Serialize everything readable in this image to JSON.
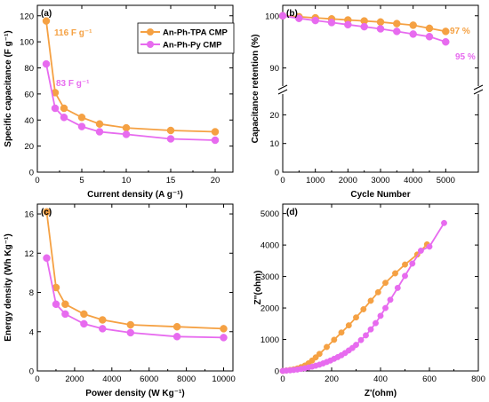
{
  "colors": {
    "orange": "#F5A143",
    "magenta": "#E76BEF"
  },
  "chart_data": [
    {
      "id": "a",
      "type": "line",
      "panel_label": "(a)",
      "xlabel": "Current density (A g⁻¹)",
      "ylabel": "Specific capacitance (F g⁻¹)",
      "xlim": [
        0,
        22
      ],
      "ylim": [
        0,
        128
      ],
      "xticks": [
        0,
        5,
        10,
        15,
        20
      ],
      "yticks": [
        0,
        20,
        40,
        60,
        80,
        100,
        120
      ],
      "legend": {
        "position": "top-right",
        "entries": [
          "An-Ph-TPA CMP",
          "An-Ph-Py CMP"
        ]
      },
      "series": [
        {
          "name": "An-Ph-TPA CMP",
          "color": "#F5A143",
          "x": [
            1,
            2,
            3,
            5,
            7,
            10,
            15,
            20
          ],
          "y": [
            116,
            61,
            49,
            42,
            37,
            34,
            32,
            31
          ]
        },
        {
          "name": "An-Ph-Py CMP",
          "color": "#E76BEF",
          "x": [
            1,
            2,
            3,
            5,
            7,
            10,
            15,
            20
          ],
          "y": [
            83,
            49,
            42,
            35,
            31,
            29,
            25.5,
            24.5
          ]
        }
      ],
      "annotations": [
        {
          "text": "116 F g⁻¹",
          "color": "#F5A143"
        },
        {
          "text": "83 F g⁻¹",
          "color": "#E76BEF"
        }
      ]
    },
    {
      "id": "b",
      "type": "line",
      "panel_label": "(b)",
      "xlabel": "Cycle Number",
      "ylabel": "Capacitance retention (%)",
      "xlim": [
        0,
        6000
      ],
      "ylim_upper": [
        85,
        102
      ],
      "ylim_lower": [
        0,
        26
      ],
      "xticks": [
        0,
        1000,
        2000,
        3000,
        4000,
        5000
      ],
      "yticks": [
        0,
        10,
        20,
        90,
        100
      ],
      "broken_axis": true,
      "series": [
        {
          "name": "An-Ph-TPA CMP",
          "color": "#F5A143",
          "x": [
            0,
            500,
            1000,
            1500,
            2000,
            2500,
            3000,
            3500,
            4000,
            4500,
            5000
          ],
          "y": [
            100,
            99.8,
            99.6,
            99.4,
            99.2,
            99,
            98.8,
            98.5,
            98.2,
            97.6,
            97
          ]
        },
        {
          "name": "An-Ph-Py CMP",
          "color": "#E76BEF",
          "x": [
            0,
            500,
            1000,
            1500,
            2000,
            2500,
            3000,
            3500,
            4000,
            4500,
            5000
          ],
          "y": [
            100,
            99.5,
            99.1,
            98.7,
            98.3,
            97.9,
            97.5,
            97,
            96.5,
            96,
            95
          ]
        }
      ],
      "annotations": [
        {
          "text": "97 %",
          "color": "#F5A143"
        },
        {
          "text": "95 %",
          "color": "#E76BEF"
        }
      ]
    },
    {
      "id": "c",
      "type": "line",
      "panel_label": "(c)",
      "xlabel": "Power density (W Kg⁻¹)",
      "ylabel": "Energy density (Wh Kg⁻¹)",
      "xlim": [
        0,
        10500
      ],
      "ylim": [
        0,
        17
      ],
      "xticks": [
        0,
        2000,
        4000,
        6000,
        8000,
        10000
      ],
      "yticks": [
        0,
        4,
        8,
        12,
        16
      ],
      "series": [
        {
          "name": "An-Ph-TPA CMP",
          "color": "#F5A143",
          "x": [
            500,
            1000,
            1500,
            2500,
            3500,
            5000,
            7500,
            10000
          ],
          "y": [
            16.2,
            8.5,
            6.8,
            5.8,
            5.2,
            4.7,
            4.5,
            4.3
          ]
        },
        {
          "name": "An-Ph-Py CMP",
          "color": "#E76BEF",
          "x": [
            500,
            1000,
            1500,
            2500,
            3500,
            5000,
            7500,
            10000
          ],
          "y": [
            11.5,
            6.8,
            5.8,
            4.8,
            4.3,
            3.9,
            3.5,
            3.4
          ]
        }
      ]
    },
    {
      "id": "d",
      "type": "scatter",
      "panel_label": "(d)",
      "xlabel": "Z'(ohm)",
      "ylabel": "Z''(ohm)",
      "xlim": [
        0,
        800
      ],
      "ylim": [
        0,
        5300
      ],
      "xticks": [
        0,
        200,
        400,
        600,
        800
      ],
      "yticks": [
        0,
        1000,
        2000,
        3000,
        4000,
        5000
      ],
      "series": [
        {
          "name": "An-Ph-TPA CMP",
          "color": "#F5A143",
          "x": [
            0,
            15,
            30,
            45,
            60,
            75,
            90,
            105,
            120,
            135,
            150,
            180,
            210,
            240,
            270,
            300,
            330,
            360,
            390,
            420,
            460,
            500,
            550,
            590
          ],
          "y": [
            0,
            15,
            30,
            50,
            80,
            120,
            170,
            240,
            330,
            430,
            540,
            760,
            990,
            1220,
            1450,
            1700,
            1960,
            2230,
            2500,
            2800,
            3100,
            3380,
            3700,
            4020
          ]
        },
        {
          "name": "An-Ph-Py CMP",
          "color": "#E76BEF",
          "x": [
            0,
            15,
            30,
            45,
            60,
            75,
            90,
            105,
            120,
            135,
            150,
            165,
            180,
            195,
            210,
            225,
            240,
            255,
            270,
            285,
            300,
            320,
            340,
            360,
            380,
            400,
            420,
            440,
            470,
            500,
            530,
            565,
            600,
            660
          ],
          "y": [
            0,
            10,
            20,
            30,
            45,
            65,
            85,
            110,
            135,
            165,
            200,
            240,
            285,
            330,
            385,
            440,
            500,
            570,
            650,
            730,
            830,
            980,
            1130,
            1320,
            1520,
            1750,
            2000,
            2260,
            2640,
            3020,
            3410,
            3820,
            3950,
            4700
          ]
        }
      ]
    }
  ]
}
